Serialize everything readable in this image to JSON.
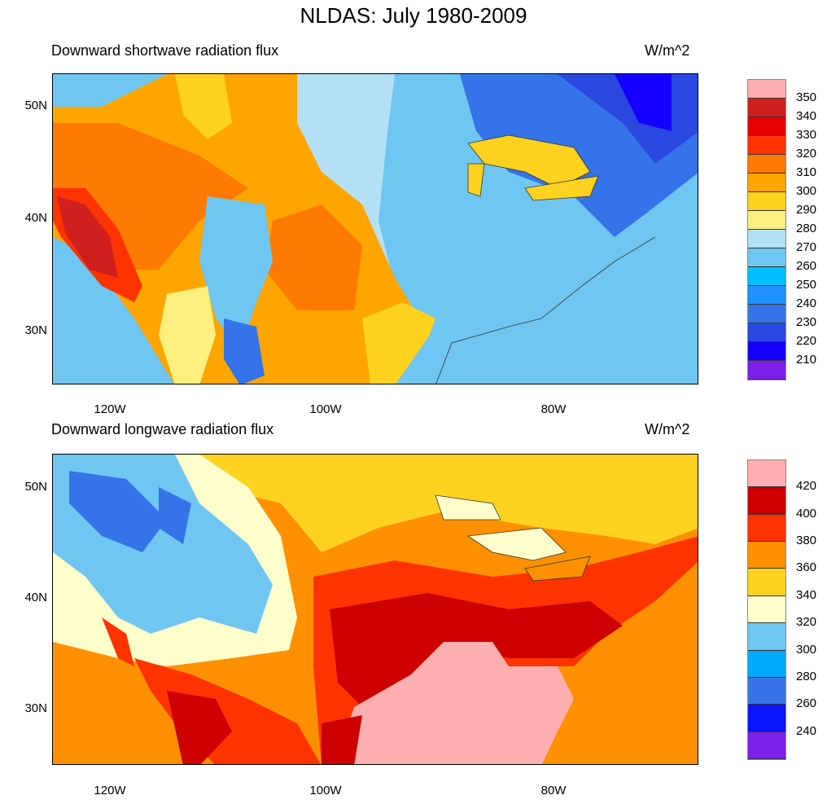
{
  "title": "NLDAS: July 1980-2009",
  "panels": [
    {
      "title": "Downward shortwave radiation flux",
      "units": "W/m^2",
      "lat_labels": [
        "50N",
        "40N",
        "30N"
      ],
      "lon_labels": [
        "120W",
        "100W",
        "80W"
      ],
      "colorbar": {
        "levels": [
          "350",
          "340",
          "330",
          "320",
          "310",
          "300",
          "290",
          "280",
          "270",
          "260",
          "250",
          "240",
          "230",
          "220",
          "210"
        ],
        "colors": [
          "#ffafaf",
          "#d01f1f",
          "#e80000",
          "#ff3300",
          "#ff7a00",
          "#ffa500",
          "#ffd21f",
          "#fff07f",
          "#b4e0f5",
          "#6fc6f0",
          "#00bfff",
          "#1e90ff",
          "#3474e8",
          "#2a48e0",
          "#1400ff",
          "#7e1eeb"
        ]
      }
    },
    {
      "title": "Downward longwave radiation flux",
      "units": "W/m^2",
      "lat_labels": [
        "50N",
        "40N",
        "30N"
      ],
      "lon_labels": [
        "120W",
        "100W",
        "80W"
      ],
      "colorbar": {
        "levels": [
          "420",
          "400",
          "380",
          "360",
          "340",
          "320",
          "300",
          "280",
          "260",
          "240"
        ],
        "colors": [
          "#ffafaf",
          "#cc0000",
          "#ff3300",
          "#ff9000",
          "#ffd21f",
          "#ffffcc",
          "#6fc6f0",
          "#00aaff",
          "#3474e8",
          "#0a14ff",
          "#7e1eeb"
        ]
      }
    }
  ]
}
